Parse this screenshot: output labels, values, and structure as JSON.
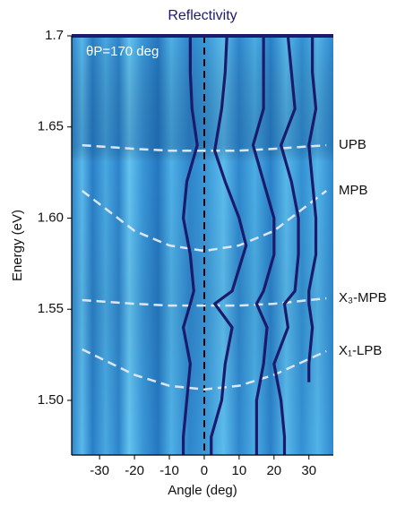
{
  "chart_data": {
    "type": "heatmap",
    "title": "Reflectivity",
    "annotation": "θP=170 deg",
    "xlabel": "Angle (deg)",
    "ylabel": "Energy (eV)",
    "xlim": [
      -38,
      37
    ],
    "ylim": [
      1.47,
      1.7
    ],
    "xticks": [
      -30,
      -20,
      -10,
      0,
      10,
      20,
      30
    ],
    "yticks": [
      {
        "value": 1.5,
        "label": "1.50"
      },
      1.55,
      {
        "value": 1.6,
        "label": "1.60"
      },
      1.65,
      1.7
    ],
    "series": [
      {
        "name": "UPB",
        "color": "#dce6f2",
        "style": "dashed",
        "x": [
          -35,
          -20,
          -10,
          0,
          10,
          20,
          35
        ],
        "values": [
          1.64,
          1.638,
          1.637,
          1.637,
          1.637,
          1.638,
          1.64
        ]
      },
      {
        "name": "MPB",
        "color": "#dce6f2",
        "style": "dashed",
        "x": [
          -35,
          -20,
          -10,
          0,
          10,
          20,
          35
        ],
        "values": [
          1.615,
          1.593,
          1.585,
          1.582,
          1.585,
          1.593,
          1.615
        ]
      },
      {
        "name": "X₃-MPB",
        "color": "#dce6f2",
        "style": "dashed",
        "x": [
          -35,
          -20,
          -10,
          0,
          10,
          20,
          35
        ],
        "values": [
          1.555,
          1.553,
          1.552,
          1.552,
          1.552,
          1.553,
          1.556
        ]
      },
      {
        "name": "X₁-LPB",
        "color": "#dce6f2",
        "style": "dashed",
        "x": [
          -35,
          -20,
          -10,
          0,
          10,
          20,
          35
        ],
        "values": [
          1.528,
          1.514,
          1.508,
          1.506,
          1.508,
          1.514,
          1.527
        ]
      },
      {
        "color": "#1c1a6b",
        "style": "solid",
        "x": [
          -4,
          -4,
          -3.5,
          -2,
          -5,
          -6,
          -4,
          -3,
          -4,
          -6,
          -4,
          -5,
          -6,
          -6
        ],
        "values": [
          1.7,
          1.68,
          1.66,
          1.64,
          1.62,
          1.6,
          1.58,
          1.56,
          1.553,
          1.54,
          1.52,
          1.5,
          1.48,
          1.47
        ]
      },
      {
        "color": "#1c1a6b",
        "style": "solid",
        "x": [
          6.5,
          6,
          5,
          3,
          6,
          10,
          12,
          8,
          3,
          8,
          6,
          5,
          2,
          2
        ],
        "values": [
          1.7,
          1.68,
          1.66,
          1.637,
          1.62,
          1.6,
          1.585,
          1.56,
          1.553,
          1.54,
          1.52,
          1.5,
          1.48,
          1.47
        ]
      },
      {
        "color": "#1c1a6b",
        "style": "solid",
        "x": [
          17,
          17,
          17,
          14,
          17,
          20,
          20,
          17,
          15,
          18,
          17,
          15,
          15,
          15
        ],
        "values": [
          1.7,
          1.68,
          1.66,
          1.64,
          1.62,
          1.6,
          1.58,
          1.56,
          1.553,
          1.54,
          1.52,
          1.5,
          1.48,
          1.47
        ]
      },
      {
        "color": "#1c1a6b",
        "style": "solid",
        "x": [
          24,
          25,
          26,
          22,
          25,
          27,
          27,
          26,
          23,
          24,
          20,
          22,
          23,
          23
        ],
        "values": [
          1.7,
          1.68,
          1.66,
          1.64,
          1.62,
          1.6,
          1.58,
          1.56,
          1.553,
          1.54,
          1.52,
          1.5,
          1.48,
          1.47
        ]
      },
      {
        "color": "#1c1a6b",
        "style": "solid",
        "x": [
          31,
          31,
          32,
          30,
          31,
          32,
          32,
          30,
          30,
          31,
          30,
          30
        ],
        "values": [
          1.7,
          1.68,
          1.66,
          1.64,
          1.62,
          1.6,
          1.58,
          1.56,
          1.553,
          1.54,
          1.52,
          1.51
        ]
      }
    ]
  }
}
